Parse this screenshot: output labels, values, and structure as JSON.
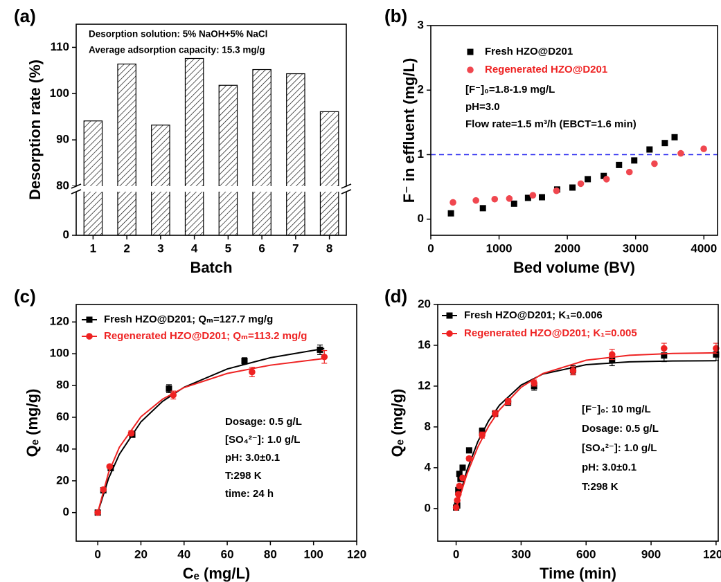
{
  "chart_data": [
    {
      "type": "bar",
      "panel_label": "(a)",
      "x_label": "Batch",
      "y_label": "Desorption rate (%)",
      "annotations": [
        "Desorption solution: 5% NaOH+5% NaCl",
        "Average adsorption capacity: 15.3 mg/g"
      ],
      "categories": [
        "1",
        "2",
        "3",
        "4",
        "5",
        "6",
        "7",
        "8"
      ],
      "values": [
        94.1,
        106.4,
        93.2,
        107.6,
        101.8,
        105.2,
        104.3,
        96.1
      ],
      "color": "#000000",
      "hatch": true,
      "ylim": [
        0,
        115
      ],
      "ybreak": 80,
      "yticks": [
        0,
        80,
        90,
        100,
        110
      ]
    },
    {
      "type": "scatter",
      "panel_label": "(b)",
      "x_label": "Bed volume (BV)",
      "y_label": "F⁻ in effluent  (mg/L)",
      "annotations": [
        "[F⁻]₀=1.8-1.9 mg/L",
        "pH=3.0",
        "Flow rate=1.5 m³/h (EBCT=1.6 min)"
      ],
      "series": [
        {
          "name": "Fresh HZO@D201",
          "color": "#000000",
          "marker": "square",
          "x": [
            295,
            763,
            1220,
            1424,
            1628,
            1851,
            2075,
            2299,
            2533,
            2757,
            2980,
            3204,
            3428,
            3571
          ],
          "values": [
            0.09,
            0.17,
            0.24,
            0.33,
            0.34,
            0.46,
            0.49,
            0.62,
            0.67,
            0.84,
            0.91,
            1.08,
            1.18,
            1.27
          ]
        },
        {
          "name": "Regenerated HZO@D201",
          "color": "#f0474f",
          "marker": "circle",
          "x": [
            325,
            661,
            936,
            1150,
            1495,
            1841,
            2197,
            2574,
            2909,
            3276,
            3662,
            3998
          ],
          "values": [
            0.26,
            0.29,
            0.31,
            0.32,
            0.37,
            0.44,
            0.55,
            0.62,
            0.73,
            0.86,
            1.02,
            1.09
          ]
        }
      ],
      "reference_line": {
        "value": 1,
        "color": "#2b2bf0",
        "style": "dashed"
      },
      "xlim": [
        0,
        4200
      ],
      "xticks": [
        0,
        1000,
        2000,
        3000,
        4000
      ],
      "ylim": [
        -0.25,
        3
      ],
      "yticks": [
        0,
        1,
        2,
        3
      ]
    },
    {
      "type": "scatter",
      "panel_label": "(c)",
      "x_label": "Cₑ (mg/L)",
      "y_label": "Qₑ (mg/g)",
      "annotations": [
        "Dosage: 0.5 g/L",
        "[SO₄²⁻]: 1.0 g/L",
        "pH: 3.0±0.1",
        "T:298 K",
        "time: 24 h"
      ],
      "series": [
        {
          "name": "Fresh HZO@D201; Qₘ=127.7 mg/g",
          "color": "#000000",
          "legend_color": "#000000",
          "marker": "square",
          "x": [
            0,
            2.6,
            6,
            16,
            33,
            68,
            103
          ],
          "values": [
            0,
            14,
            28,
            49,
            78,
            95.5,
            102.5
          ],
          "errors": [
            0,
            1,
            1.5,
            1.5,
            2.5,
            2,
            3
          ],
          "fit": {
            "x": [
              0,
              5,
              10,
              20,
              30,
              40,
              60,
              80,
              105
            ],
            "values": [
              0,
              21.5,
              36.7,
              57.1,
              70.0,
              78.9,
              90.4,
              97.5,
              103.3
            ]
          }
        },
        {
          "name": "Regenerated HZO@D201; Qₘ=113.2 mg/g",
          "color": "#ee2222",
          "legend_color": "#ee2222",
          "marker": "circle",
          "x": [
            0,
            2.6,
            5.5,
            15.5,
            35,
            71.5,
            105
          ],
          "values": [
            0,
            14.5,
            29,
            50,
            74,
            88.5,
            98
          ],
          "errors": [
            0,
            1,
            1,
            1.5,
            2.5,
            3,
            4
          ],
          "fit": {
            "x": [
              0,
              5,
              10,
              20,
              30,
              40,
              60,
              80,
              105
            ],
            "values": [
              0,
              25.1,
              41.1,
              60.3,
              71.4,
              78.7,
              87.6,
              92.8,
              97.0
            ]
          }
        }
      ],
      "xlim": [
        -10,
        120
      ],
      "xticks": [
        0,
        20,
        40,
        60,
        80,
        100,
        120
      ],
      "ylim": [
        -18,
        131
      ],
      "yticks": [
        0,
        20,
        40,
        60,
        80,
        100,
        120
      ]
    },
    {
      "type": "scatter",
      "panel_label": "(d)",
      "x_label": "Time (min)",
      "y_label": "Qₑ (mg/g)",
      "annotations": [
        "[F⁻]₀: 10 mg/L",
        "Dosage: 0.5 g/L",
        "[SO₄²⁻]: 1.0 g/L",
        "pH: 3.0±0.1",
        "T:298 K"
      ],
      "series": [
        {
          "name": "Fresh HZO@D201; K₁=0.006",
          "color": "#000000",
          "legend_color": "#000000",
          "marker": "square",
          "x": [
            0,
            5,
            10,
            15,
            20,
            30,
            60,
            120,
            180,
            240,
            360,
            540,
            720,
            960,
            1200
          ],
          "values": [
            0.1,
            0.3,
            1.8,
            3.4,
            2.9,
            4.0,
            5.7,
            7.6,
            9.3,
            10.4,
            12.0,
            13.6,
            14.6,
            15.0,
            15.1
          ],
          "errors": [
            0.1,
            0.1,
            0.2,
            0.2,
            0.2,
            0.2,
            0.2,
            0.3,
            0.3,
            0.3,
            0.4,
            0.4,
            0.6,
            0.6,
            0.6
          ],
          "fit": {
            "x": [
              0,
              50,
              100,
              150,
              200,
              300,
              400,
              600,
              800,
              1000,
              1200
            ],
            "values": [
              0,
              3.76,
              6.55,
              8.6,
              10.13,
              12.1,
              13.18,
              14.1,
              14.38,
              14.46,
              14.49
            ]
          }
        },
        {
          "name": "Regenerated HZO@D201; K₁=0.005",
          "color": "#ee2222",
          "legend_color": "#ee2222",
          "marker": "circle",
          "x": [
            0,
            5,
            10,
            15,
            30,
            60,
            120,
            180,
            240,
            360,
            540,
            720,
            960,
            1200
          ],
          "values": [
            0.1,
            0.8,
            1.4,
            2.2,
            3.0,
            4.9,
            7.2,
            9.3,
            10.5,
            12.3,
            13.5,
            15.1,
            15.7,
            15.7
          ],
          "errors": [
            0.1,
            0.1,
            0.1,
            0.2,
            0.2,
            0.2,
            0.3,
            0.3,
            0.3,
            0.3,
            0.4,
            0.5,
            0.5,
            0.5
          ],
          "fit": {
            "x": [
              0,
              50,
              100,
              150,
              200,
              300,
              400,
              600,
              800,
              1000,
              1200
            ],
            "values": [
              0,
              3.38,
              6.02,
              8.07,
              9.67,
              11.88,
              13.23,
              14.54,
              15.02,
              15.2,
              15.26
            ]
          }
        }
      ],
      "xlim": [
        -85,
        1210
      ],
      "xticks": [
        0,
        300,
        600,
        900,
        1200
      ],
      "ylim": [
        -3.2,
        20
      ],
      "yticks": [
        0,
        4,
        8,
        12,
        16,
        20
      ]
    }
  ]
}
